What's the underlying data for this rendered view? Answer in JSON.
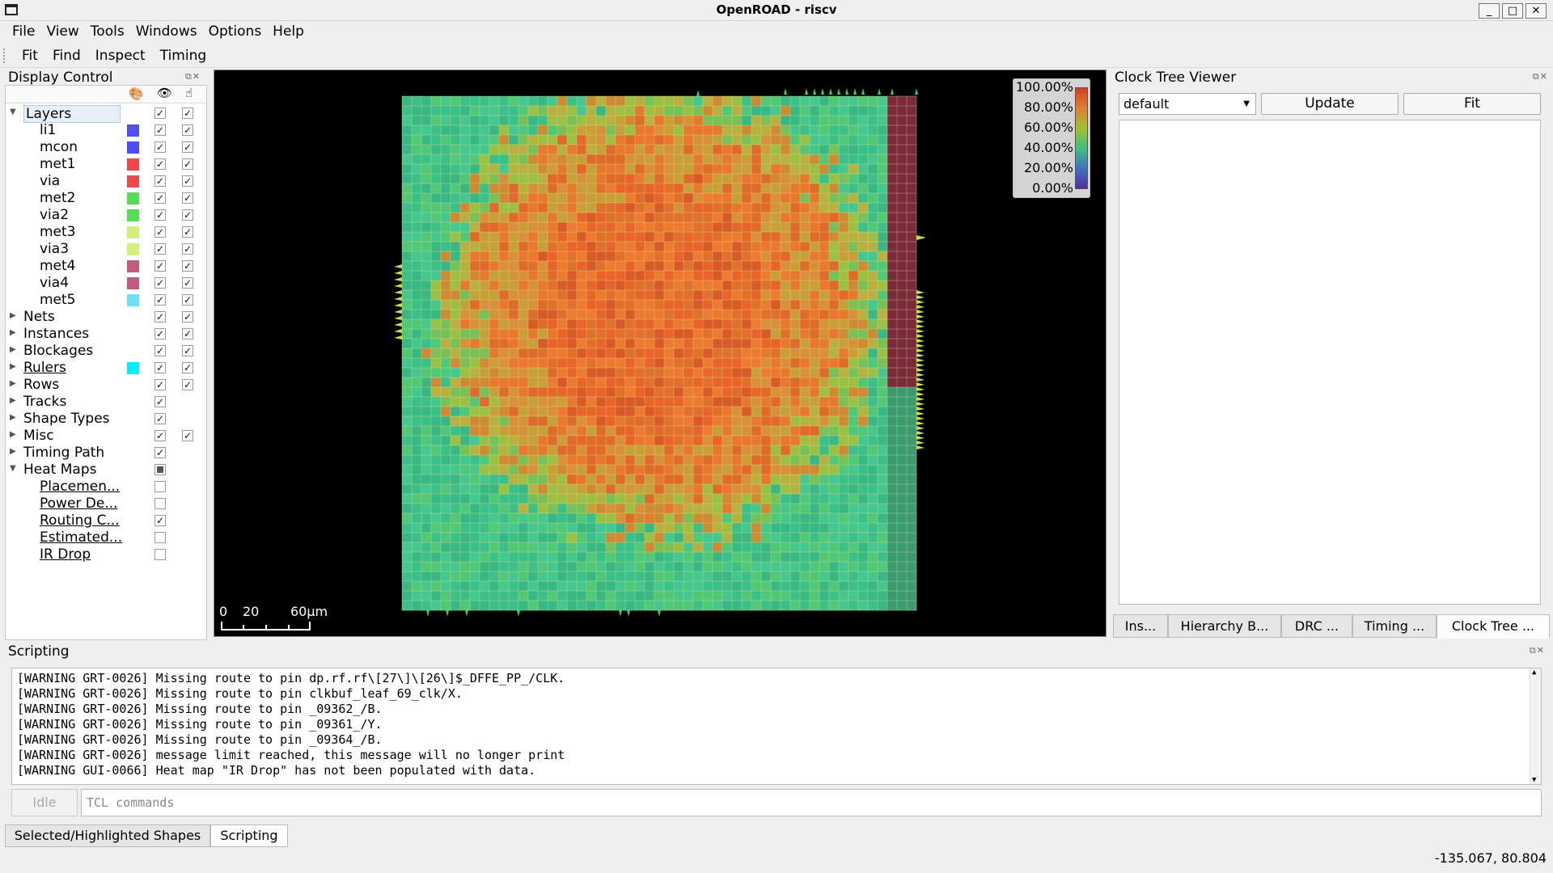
{
  "window": {
    "title": "OpenROAD - riscv"
  },
  "menubar": [
    "File",
    "View",
    "Tools",
    "Windows",
    "Options",
    "Help"
  ],
  "toolbar": [
    "Fit",
    "Find",
    "Inspect",
    "Timing"
  ],
  "display_control": {
    "title": "Display Control",
    "layers": [
      {
        "label": "li1",
        "color": "#5050ee"
      },
      {
        "label": "mcon",
        "color": "#4b4bff"
      },
      {
        "label": "met1",
        "color": "#f04848"
      },
      {
        "label": "via",
        "color": "#f04848"
      },
      {
        "label": "met2",
        "color": "#55dd55"
      },
      {
        "label": "via2",
        "color": "#55dd55"
      },
      {
        "label": "met3",
        "color": "#d4f07c"
      },
      {
        "label": "via3",
        "color": "#d4f07c"
      },
      {
        "label": "met4",
        "color": "#c45a80"
      },
      {
        "label": "via4",
        "color": "#c45a80"
      },
      {
        "label": "met5",
        "color": "#6ee0f8"
      }
    ],
    "groups": [
      {
        "label": "Nets",
        "sel": true
      },
      {
        "label": "Instances",
        "sel": true
      },
      {
        "label": "Blockages",
        "sel": true
      },
      {
        "label": "Rulers",
        "sel": true,
        "color": "#00f0f8"
      },
      {
        "label": "Rows",
        "sel": true
      },
      {
        "label": "Tracks",
        "sel": false
      },
      {
        "label": "Shape Types",
        "sel": false
      },
      {
        "label": "Misc",
        "sel": true
      },
      {
        "label": "Timing Path",
        "sel": false
      }
    ],
    "layers_label": "Layers",
    "heatmaps_label": "Heat Maps",
    "heatmaps": [
      {
        "label": "Placemen...",
        "checked": false
      },
      {
        "label": "Power De...",
        "checked": false
      },
      {
        "label": "Routing C...",
        "checked": true
      },
      {
        "label": "Estimated...",
        "checked": false
      },
      {
        "label": "IR Drop",
        "checked": false
      }
    ]
  },
  "heatmap_legend": [
    "100.00%",
    "80.00%",
    "60.00%",
    "40.00%",
    "20.00%",
    "0.00%"
  ],
  "scale_bar": {
    "labels": [
      "0",
      "20",
      "60μm"
    ]
  },
  "clock_tree_viewer": {
    "title": "Clock Tree Viewer",
    "select_value": "default",
    "update_label": "Update",
    "fit_label": "Fit"
  },
  "right_tabs": [
    "Ins...",
    "Hierarchy B...",
    "DRC ...",
    "Timing ...",
    "Clock Tree ..."
  ],
  "scripting": {
    "title": "Scripting",
    "lines": [
      "[WARNING GRT-0026] Missing route to pin dp.rf.rf\\[27\\]\\[26\\]$_DFFE_PP_/CLK.",
      "[WARNING GRT-0026] Missing route to pin clkbuf_leaf_69_clk/X.",
      "[WARNING GRT-0026] Missing route to pin _09362_/B.",
      "[WARNING GRT-0026] Missing route to pin _09361_/Y.",
      "[WARNING GRT-0026] Missing route to pin _09364_/B.",
      "[WARNING GRT-0026] message limit reached, this message will no longer print",
      "[WARNING GUI-0066] Heat map \"IR Drop\" has not been populated with data."
    ],
    "idle_label": "Idle",
    "input_placeholder": "TCL commands"
  },
  "bottom_tabs": [
    "Selected/Highlighted Shapes",
    "Scripting"
  ],
  "status": {
    "coords": "-135.067, 80.804"
  }
}
